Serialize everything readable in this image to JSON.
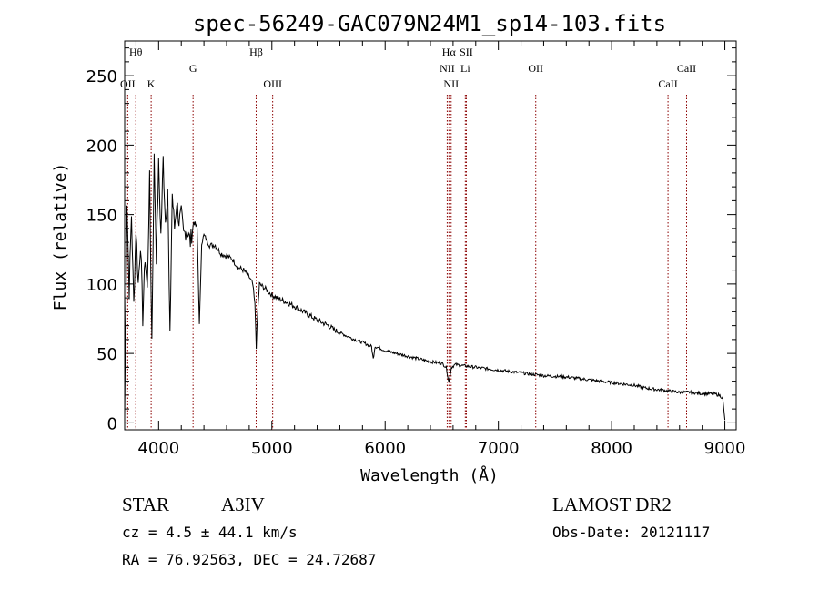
{
  "chart_data": {
    "type": "line",
    "title": "spec-56249-GAC079N24M1_sp14-103.fits",
    "xlabel": "Wavelength (Å)",
    "ylabel": "Flux (relative)",
    "xlim": [
      3700,
      9100
    ],
    "ylim": [
      -5,
      275
    ],
    "xticks": [
      4000,
      5000,
      6000,
      7000,
      8000,
      9000
    ],
    "yticks": [
      0,
      50,
      100,
      150,
      200,
      250
    ],
    "grid": false,
    "line_color": "#000000",
    "marker_color": "#8b0000",
    "spectrum": {
      "x": [
        3700,
        3720,
        3740,
        3760,
        3780,
        3800,
        3820,
        3840,
        3860,
        3880,
        3900,
        3920,
        3940,
        3960,
        3980,
        4000,
        4020,
        4040,
        4060,
        4080,
        4100,
        4120,
        4140,
        4160,
        4180,
        4200,
        4220,
        4250,
        4280,
        4310,
        4340,
        4360,
        4380,
        4400,
        4450,
        4500,
        4550,
        4600,
        4650,
        4700,
        4750,
        4800,
        4830,
        4850,
        4862,
        4875,
        4890,
        4920,
        4950,
        5000,
        5100,
        5200,
        5300,
        5400,
        5500,
        5550,
        5600,
        5700,
        5800,
        5880,
        5895,
        5910,
        5950,
        6000,
        6100,
        6200,
        6300,
        6400,
        6500,
        6540,
        6563,
        6585,
        6620,
        6700,
        6800,
        6900,
        7000,
        7200,
        7400,
        7600,
        7800,
        8000,
        8200,
        8300,
        8400,
        8500,
        8600,
        8700,
        8800,
        8900,
        8950,
        8980,
        9000
      ],
      "y": [
        5,
        160,
        95,
        150,
        85,
        140,
        100,
        130,
        75,
        120,
        95,
        175,
        60,
        190,
        120,
        185,
        135,
        190,
        145,
        170,
        60,
        165,
        140,
        160,
        145,
        150,
        135,
        140,
        130,
        145,
        140,
        70,
        130,
        135,
        128,
        128,
        122,
        120,
        118,
        112,
        110,
        105,
        100,
        85,
        55,
        80,
        100,
        98,
        96,
        92,
        88,
        84,
        79,
        74,
        70,
        67,
        65,
        61,
        58,
        55,
        46,
        55,
        54,
        52,
        50,
        48,
        46,
        44,
        43,
        40,
        29,
        40,
        42,
        41,
        40,
        39,
        38,
        36,
        34,
        33,
        31,
        29,
        27,
        25,
        24,
        23,
        22,
        22,
        21,
        21,
        20,
        18,
        2
      ]
    },
    "lines": [
      {
        "label": "Hθ",
        "x": 3798
      },
      {
        "label": "OII",
        "x": 3727
      },
      {
        "label": "K",
        "x": 3934
      },
      {
        "label": "G",
        "x": 4304
      },
      {
        "label": "Hβ",
        "x": 4861
      },
      {
        "label": "OIII",
        "x": 5007
      },
      {
        "label": "NII",
        "x": 6548
      },
      {
        "label": "Hα",
        "x": 6563
      },
      {
        "label": "NII",
        "x": 6583
      },
      {
        "label": "SII",
        "x": 6717
      },
      {
        "label": "Li",
        "x": 6708
      },
      {
        "label": "OII",
        "x": 7330
      },
      {
        "label": "CaII",
        "x": 8498
      },
      {
        "label": "CaII",
        "x": 8662
      }
    ]
  },
  "info": {
    "class": "STAR",
    "subclass": "A3IV",
    "survey": "LAMOST DR2",
    "redshift": "cz = 4.5 ± 44.1 km/s",
    "obsdate": "Obs-Date: 20121117",
    "coords": "RA =  76.92563, DEC =  24.72687"
  }
}
